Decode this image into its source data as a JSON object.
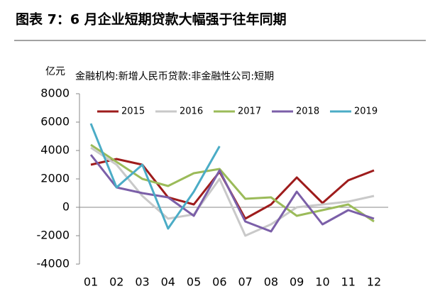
{
  "chart_data": {
    "type": "line",
    "title": "图表 7：6 月企业短期贷款大幅强于往年同期",
    "subtitle": "金融机构:新增人民币贷款:非金融性公司:短期",
    "y_label": "亿元",
    "categories": [
      "01",
      "02",
      "03",
      "04",
      "05",
      "06",
      "07",
      "08",
      "09",
      "10",
      "11",
      "12"
    ],
    "series": [
      {
        "name": "2015",
        "color": "#9e1c1c",
        "values": [
          3000,
          3400,
          3000,
          700,
          200,
          2500,
          -800,
          200,
          2100,
          300,
          1900,
          2600
        ]
      },
      {
        "name": "2016",
        "color": "#c9c9c9",
        "values": [
          4200,
          3000,
          800,
          -800,
          -500,
          2000,
          -2000,
          -1200,
          0,
          200,
          400,
          800
        ]
      },
      {
        "name": "2017",
        "color": "#9bbb59",
        "values": [
          4400,
          3200,
          2000,
          1500,
          2400,
          2700,
          600,
          700,
          -600,
          -200,
          200,
          -1000
        ]
      },
      {
        "name": "2018",
        "color": "#7b5fa8",
        "values": [
          3700,
          1400,
          1000,
          700,
          -600,
          2600,
          -1000,
          -1700,
          1100,
          -1200,
          -200,
          -800
        ]
      },
      {
        "name": "2019",
        "color": "#4bacc6",
        "values": [
          5900,
          1400,
          3000,
          -1500,
          1100,
          4300,
          null,
          null,
          null,
          null,
          null,
          null
        ]
      }
    ],
    "ylim": [
      -4000,
      8000
    ],
    "yticks": [
      -4000,
      -2000,
      0,
      2000,
      4000,
      6000,
      8000
    ],
    "legend": "top"
  }
}
